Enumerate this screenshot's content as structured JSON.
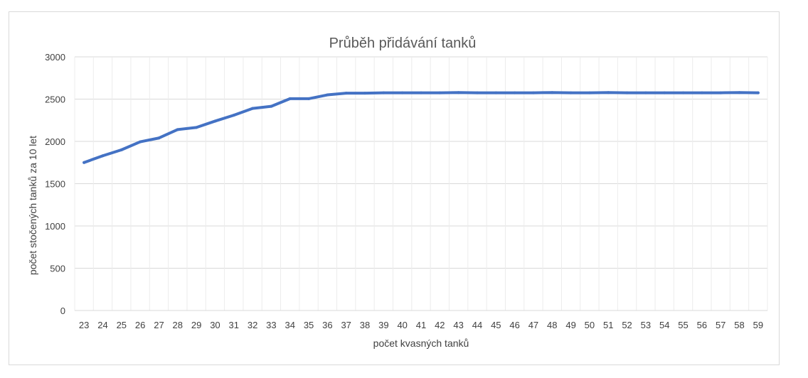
{
  "chart_data": {
    "type": "line",
    "title": "Průběh přidávání tanků",
    "xlabel": "počet kvasných tanků",
    "ylabel": "počet stočených tanků za 10 let",
    "ylim": [
      0,
      3000
    ],
    "yticks": [
      0,
      500,
      1000,
      1500,
      2000,
      2500,
      3000
    ],
    "grid": true,
    "legend": "none",
    "line_color": "#4472c4",
    "categories": [
      "23",
      "24",
      "25",
      "26",
      "27",
      "28",
      "29",
      "30",
      "31",
      "32",
      "33",
      "34",
      "35",
      "36",
      "37",
      "38",
      "39",
      "40",
      "41",
      "42",
      "43",
      "44",
      "45",
      "46",
      "47",
      "48",
      "49",
      "50",
      "51",
      "52",
      "53",
      "54",
      "55",
      "56",
      "57",
      "58",
      "59"
    ],
    "series": [
      {
        "values": [
          1750,
          1830,
          1900,
          1995,
          2040,
          2140,
          2165,
          2240,
          2310,
          2390,
          2415,
          2505,
          2505,
          2550,
          2570,
          2570,
          2575,
          2575,
          2575,
          2575,
          2578,
          2575,
          2575,
          2575,
          2575,
          2578,
          2575,
          2575,
          2578,
          2575,
          2575,
          2575,
          2575,
          2575,
          2575,
          2578,
          2575
        ]
      }
    ]
  }
}
